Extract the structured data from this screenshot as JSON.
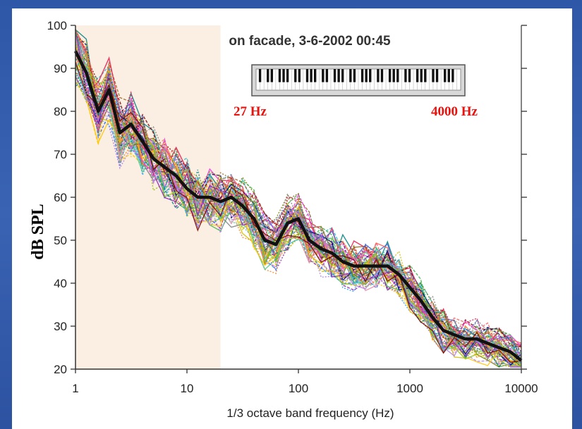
{
  "colors": {
    "frame_background": "#2f57a8",
    "shaded_region": "#fbeee3",
    "mean_line": "#111111",
    "annotation": "#e8130f"
  },
  "chart_data": {
    "type": "line",
    "title": "on facade, 3-6-2002 00:45",
    "xlabel": "1/3 octave band frequency (Hz)",
    "ylabel": "dB SPL",
    "x_scale": "log",
    "xlim": [
      1,
      10000
    ],
    "ylim": [
      20,
      100
    ],
    "x_ticks": [
      1,
      10,
      100,
      1000,
      10000
    ],
    "x_tick_labels": [
      "1",
      "10",
      "100",
      "1000",
      "10000"
    ],
    "y_ticks": [
      20,
      30,
      40,
      50,
      60,
      70,
      80,
      90,
      100
    ],
    "y_tick_labels": [
      "20",
      "30",
      "40",
      "50",
      "60",
      "70",
      "80",
      "90",
      "100"
    ],
    "grid": false,
    "legend": "none",
    "shaded_region": {
      "x_from": 1,
      "x_to": 20
    },
    "annotations": [
      {
        "text": "27 Hz"
      },
      {
        "text": "4000 Hz"
      }
    ],
    "mean_series": {
      "x": [
        1,
        1.25,
        1.6,
        2,
        2.5,
        3.15,
        4,
        5,
        6.3,
        8,
        10,
        12.5,
        16,
        20,
        25,
        31.5,
        40,
        50,
        63,
        80,
        100,
        125,
        160,
        200,
        250,
        315,
        400,
        500,
        630,
        800,
        1000,
        1250,
        1600,
        2000,
        2500,
        3150,
        4000,
        5000,
        6300,
        8000,
        10000
      ],
      "y": [
        94,
        89,
        80,
        85,
        75,
        77,
        73,
        69,
        67,
        65,
        62,
        60,
        60,
        59,
        60,
        58,
        55,
        50,
        49,
        54,
        55,
        50,
        48,
        47,
        45,
        44,
        44,
        44,
        44,
        42,
        39,
        36,
        32,
        29,
        28,
        27,
        27,
        26,
        25,
        24,
        22
      ]
    },
    "individual_measurements": {
      "count_approx": 60,
      "spread_db_low_freq": 14,
      "spread_db_high_freq": 6
    }
  }
}
